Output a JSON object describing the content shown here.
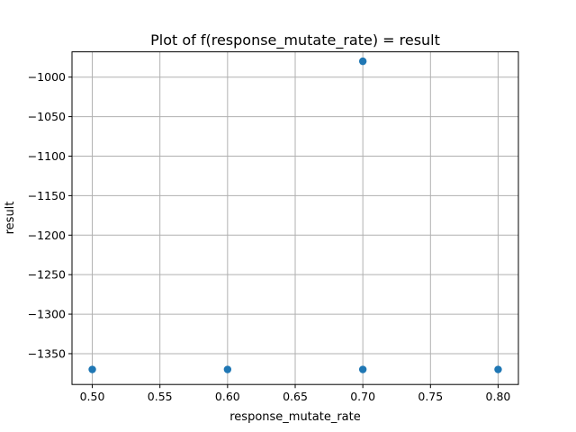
{
  "chart_data": {
    "type": "scatter",
    "title": "Plot of f(response_mutate_rate) = result",
    "xlabel": "response_mutate_rate",
    "ylabel": "result",
    "xlim": [
      0.485,
      0.815
    ],
    "ylim": [
      -1389,
      -968
    ],
    "xticks": [
      0.5,
      0.55,
      0.6,
      0.65,
      0.7,
      0.75,
      0.8
    ],
    "xtick_labels": [
      "0.50",
      "0.55",
      "0.60",
      "0.65",
      "0.70",
      "0.75",
      "0.80"
    ],
    "yticks": [
      -1000,
      -1050,
      -1100,
      -1150,
      -1200,
      -1250,
      -1300,
      -1350
    ],
    "ytick_labels": [
      "−1000",
      "−1050",
      "−1100",
      "−1150",
      "−1200",
      "−1250",
      "−1300",
      "−1350"
    ],
    "grid": true,
    "marker_color": "#1f77b4",
    "points": [
      {
        "x": 0.5,
        "y": -1370
      },
      {
        "x": 0.6,
        "y": -1370
      },
      {
        "x": 0.7,
        "y": -1370
      },
      {
        "x": 0.7,
        "y": -980
      },
      {
        "x": 0.8,
        "y": -1370
      }
    ]
  }
}
